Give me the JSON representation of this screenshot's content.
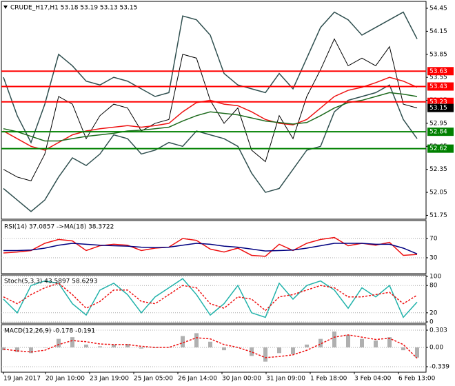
{
  "chart_data": [
    {
      "type": "line",
      "title": "CRUDE_H17,H1  53.18 53.19 53.13 53.15",
      "ylim": [
        51.7,
        54.54
      ],
      "yticks": [
        54.45,
        54.15,
        53.85,
        53.55,
        53.25,
        52.95,
        52.65,
        52.35,
        52.05,
        51.75
      ],
      "levels": [
        {
          "value": 53.63,
          "color": "#ff0000"
        },
        {
          "value": 53.43,
          "color": "#ff0000"
        },
        {
          "value": 53.23,
          "color": "#ff0000"
        },
        {
          "value": 52.84,
          "color": "#008000"
        },
        {
          "value": 52.62,
          "color": "#008000"
        }
      ],
      "last_price": 53.15,
      "series": [
        {
          "color": "#000000",
          "values": [
            52.35,
            52.25,
            52.2,
            52.55,
            53.3,
            53.2,
            52.75,
            53.05,
            53.2,
            53.15,
            52.85,
            52.95,
            53.0,
            53.85,
            53.8,
            53.25,
            52.95,
            53.15,
            52.6,
            52.45,
            53.05,
            52.75,
            53.3,
            53.65,
            54.05,
            53.7,
            53.8,
            53.7,
            53.95,
            53.2,
            53.15
          ]
        },
        {
          "color": "#2f4f4f",
          "values": [
            53.55,
            53.05,
            52.7,
            53.2,
            53.85,
            53.7,
            53.5,
            53.45,
            53.55,
            53.5,
            53.4,
            53.3,
            53.35,
            54.35,
            54.3,
            54.1,
            53.6,
            53.45,
            53.4,
            53.35,
            53.6,
            53.4,
            53.8,
            54.2,
            54.4,
            54.3,
            54.1,
            54.2,
            54.3,
            54.4,
            54.05
          ]
        },
        {
          "color": "#2f4f4f",
          "values": [
            52.1,
            51.95,
            51.8,
            51.95,
            52.25,
            52.5,
            52.4,
            52.55,
            52.8,
            52.75,
            52.55,
            52.6,
            52.7,
            52.65,
            52.85,
            52.8,
            52.75,
            52.65,
            52.3,
            52.05,
            52.1,
            52.35,
            52.6,
            52.65,
            53.1,
            53.25,
            53.3,
            53.35,
            53.45,
            53.0,
            52.75
          ]
        },
        {
          "color": "#ee1111",
          "values": [
            52.85,
            52.75,
            52.65,
            52.6,
            52.7,
            52.8,
            52.85,
            52.88,
            52.9,
            52.92,
            52.9,
            52.92,
            52.95,
            53.1,
            53.22,
            53.25,
            53.2,
            53.18,
            53.1,
            53.0,
            52.95,
            52.93,
            53.0,
            53.15,
            53.3,
            53.38,
            53.42,
            53.48,
            53.55,
            53.5,
            53.42
          ]
        },
        {
          "color": "#1e6b1e",
          "values": [
            52.88,
            52.84,
            52.78,
            52.72,
            52.72,
            52.75,
            52.78,
            52.8,
            52.82,
            52.85,
            52.86,
            52.88,
            52.9,
            52.98,
            53.05,
            53.1,
            53.08,
            53.06,
            53.02,
            52.98,
            52.96,
            52.94,
            52.96,
            53.05,
            53.15,
            53.22,
            53.25,
            53.3,
            53.35,
            53.33,
            53.3
          ]
        }
      ]
    },
    {
      "type": "line",
      "title": "RSI(14) 37.0857  ->MA(18) 38.3722",
      "ylim": [
        -2.9,
        107.1
      ],
      "yticks": [
        70,
        30
      ],
      "series": [
        {
          "color": "#ee1111",
          "values": [
            40,
            42,
            45,
            60,
            68,
            65,
            45,
            55,
            58,
            56,
            45,
            50,
            52,
            70,
            66,
            48,
            42,
            50,
            35,
            33,
            58,
            45,
            60,
            68,
            72,
            55,
            60,
            56,
            62,
            35,
            37
          ]
        },
        {
          "color": "#000080",
          "values": [
            45,
            45,
            46,
            50,
            56,
            60,
            58,
            56,
            55,
            54,
            52,
            51,
            52,
            56,
            60,
            58,
            54,
            52,
            48,
            44,
            45,
            46,
            50,
            55,
            60,
            60,
            60,
            58,
            58,
            50,
            38
          ]
        }
      ]
    },
    {
      "type": "line",
      "title": "Stoch(5,3,3) 43.5897 58.6293",
      "ylim": [
        -3,
        103
      ],
      "yticks": [
        100,
        80,
        20,
        0
      ],
      "series": [
        {
          "color": "#20b2aa",
          "values": [
            50,
            20,
            80,
            90,
            85,
            40,
            15,
            70,
            85,
            60,
            20,
            55,
            75,
            95,
            60,
            15,
            40,
            80,
            20,
            10,
            85,
            50,
            80,
            90,
            70,
            30,
            75,
            55,
            80,
            10,
            43.5897
          ]
        },
        {
          "color": "#ee1111",
          "dash": true,
          "values": [
            55,
            40,
            60,
            75,
            85,
            60,
            30,
            45,
            70,
            70,
            45,
            40,
            60,
            80,
            75,
            40,
            30,
            55,
            50,
            25,
            55,
            60,
            70,
            80,
            75,
            55,
            55,
            60,
            65,
            40,
            58.6293
          ]
        }
      ]
    },
    {
      "type": "bar",
      "title": "MACD(12,26,9) -0.178 -0.191",
      "ylim": [
        -0.436,
        0.4
      ],
      "yticks": [
        0.303,
        {
          "value": 0,
          "label": "0.00"
        },
        -0.339
      ],
      "xlim": [
        0,
        30
      ],
      "xticks": [
        {
          "value": 0,
          "label": "19 Jan 2017"
        },
        {
          "value": 3.05,
          "label": "20 Jan 10:00"
        },
        {
          "value": 6.25,
          "label": "23 Jan 19:00"
        },
        {
          "value": 9.45,
          "label": "25 Jan 05:00"
        },
        {
          "value": 12.65,
          "label": "26 Jan 14:00"
        },
        {
          "value": 15.85,
          "label": "30 Jan 00:00"
        },
        {
          "value": 19.05,
          "label": "31 Jan 09:00"
        },
        {
          "value": 22.25,
          "label": "1 Feb 18:00"
        },
        {
          "value": 25.45,
          "label": "3 Feb 04:00"
        },
        {
          "value": 28.65,
          "label": "6 Feb 13:00"
        }
      ],
      "series": [
        {
          "color": "#b0b0b0",
          "values": [
            -0.05,
            -0.08,
            -0.1,
            0.0,
            0.15,
            0.18,
            0.05,
            0.02,
            0.05,
            0.06,
            -0.02,
            -0.01,
            0.0,
            0.2,
            0.25,
            0.1,
            -0.05,
            0.0,
            -0.15,
            -0.25,
            -0.1,
            -0.12,
            0.05,
            0.15,
            0.28,
            0.22,
            0.15,
            0.12,
            0.18,
            -0.05,
            -0.178
          ]
        },
        {
          "color": "#ee1111",
          "dash": true,
          "values": [
            -0.03,
            -0.06,
            -0.08,
            -0.05,
            0.05,
            0.12,
            0.1,
            0.06,
            0.05,
            0.05,
            0.02,
            0.0,
            0.0,
            0.08,
            0.17,
            0.15,
            0.05,
            0.0,
            -0.08,
            -0.18,
            -0.16,
            -0.13,
            -0.05,
            0.06,
            0.18,
            0.22,
            0.18,
            0.14,
            0.16,
            0.05,
            -0.191
          ]
        }
      ]
    }
  ]
}
